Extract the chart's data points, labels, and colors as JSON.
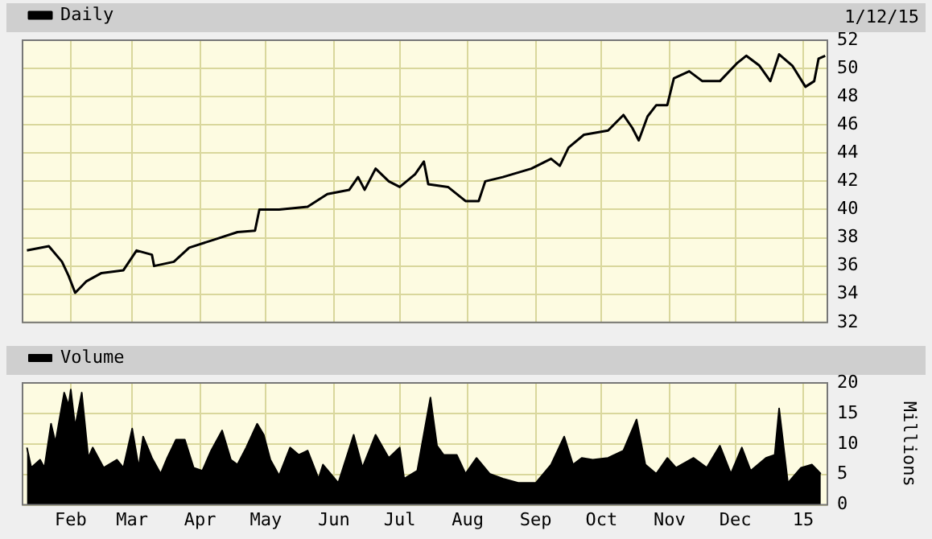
{
  "chart_data": [
    {
      "type": "line",
      "annotations": [
        "1/12/15"
      ],
      "legend": "top left",
      "grid": true,
      "tick_labels": "y",
      "xlim": [
        "2014-01-10",
        "2015-01-12"
      ],
      "xticks": [
        {
          "value": "2014-02-01",
          "label": null
        },
        {
          "value": "2014-03-01",
          "label": null
        },
        {
          "value": "2014-04-01",
          "label": null
        },
        {
          "value": "2014-05-01",
          "label": null
        },
        {
          "value": "2014-06-01",
          "label": null
        },
        {
          "value": "2014-07-01",
          "label": null
        },
        {
          "value": "2014-08-01",
          "label": null
        },
        {
          "value": "2014-09-01",
          "label": null
        },
        {
          "value": "2014-10-01",
          "label": null
        },
        {
          "value": "2014-11-01",
          "label": null
        },
        {
          "value": "2014-12-01",
          "label": null
        },
        {
          "value": "2015-01-01",
          "label": null
        }
      ],
      "ylim": [
        32,
        52
      ],
      "yticks": [
        32,
        34,
        36,
        38,
        40,
        42,
        44,
        46,
        48,
        50,
        52
      ],
      "series": [
        {
          "name": "Daily",
          "color": "#000000",
          "x": [
            "2014-01-12",
            "2014-01-22",
            "2014-01-28",
            "2014-01-31",
            "2014-02-03",
            "2014-02-08",
            "2014-02-15",
            "2014-02-25",
            "2014-03-03",
            "2014-03-10",
            "2014-03-11",
            "2014-03-20",
            "2014-03-27",
            "2014-04-08",
            "2014-04-18",
            "2014-04-26",
            "2014-04-28",
            "2014-05-07",
            "2014-05-20",
            "2014-05-29",
            "2014-06-08",
            "2014-06-12",
            "2014-06-15",
            "2014-06-20",
            "2014-06-26",
            "2014-07-01",
            "2014-07-08",
            "2014-07-12",
            "2014-07-14",
            "2014-07-23",
            "2014-07-31",
            "2014-08-06",
            "2014-08-09",
            "2014-08-17",
            "2014-08-30",
            "2014-09-08",
            "2014-09-12",
            "2014-09-16",
            "2014-09-23",
            "2014-10-04",
            "2014-10-11",
            "2014-10-15",
            "2014-10-18",
            "2014-10-22",
            "2014-10-26",
            "2014-10-31",
            "2014-11-03",
            "2014-11-10",
            "2014-11-16",
            "2014-11-24",
            "2014-12-02",
            "2014-12-06",
            "2014-12-12",
            "2014-12-17",
            "2014-12-21",
            "2014-12-27",
            "2015-01-02",
            "2015-01-06",
            "2015-01-08",
            "2015-01-11"
          ],
          "values": [
            37.1,
            37.4,
            36.3,
            35.3,
            34.1,
            34.9,
            35.5,
            35.7,
            37.1,
            36.8,
            36.0,
            36.3,
            37.3,
            37.9,
            38.4,
            38.5,
            40.0,
            40.0,
            40.2,
            41.1,
            41.4,
            42.3,
            41.4,
            42.9,
            42.0,
            41.6,
            42.5,
            43.4,
            41.8,
            41.6,
            40.6,
            40.6,
            42.0,
            42.3,
            42.9,
            43.6,
            43.1,
            44.4,
            45.3,
            45.6,
            46.7,
            45.8,
            44.9,
            46.6,
            47.4,
            47.4,
            49.3,
            49.8,
            49.1,
            49.1,
            50.4,
            50.9,
            50.2,
            49.1,
            51.0,
            50.2,
            48.7,
            49.1,
            50.7,
            50.9
          ]
        }
      ]
    },
    {
      "type": "area",
      "ylabel": "Millions",
      "legend": "top left",
      "grid": true,
      "xlim": [
        "2014-01-10",
        "2015-01-12"
      ],
      "xticks": [
        {
          "value": "2014-02-01",
          "label": "Feb"
        },
        {
          "value": "2014-03-01",
          "label": "Mar"
        },
        {
          "value": "2014-04-01",
          "label": "Apr"
        },
        {
          "value": "2014-05-01",
          "label": "May"
        },
        {
          "value": "2014-06-01",
          "label": "Jun"
        },
        {
          "value": "2014-07-01",
          "label": "Jul"
        },
        {
          "value": "2014-08-01",
          "label": "Aug"
        },
        {
          "value": "2014-09-01",
          "label": "Sep"
        },
        {
          "value": "2014-10-01",
          "label": "Oct"
        },
        {
          "value": "2014-11-01",
          "label": "Nov"
        },
        {
          "value": "2014-12-01",
          "label": "Dec"
        },
        {
          "value": "2015-01-01",
          "label": "15"
        }
      ],
      "ylim": [
        0,
        20
      ],
      "yticks": [
        0,
        5,
        10,
        15,
        20
      ],
      "series": [
        {
          "name": "Volume",
          "color": "#000000",
          "x": [
            "2014-01-12",
            "2014-01-14",
            "2014-01-18",
            "2014-01-20",
            "2014-01-23",
            "2014-01-25",
            "2014-01-29",
            "2014-01-31",
            "2014-02-01",
            "2014-02-03",
            "2014-02-06",
            "2014-02-09",
            "2014-02-11",
            "2014-02-16",
            "2014-02-22",
            "2014-02-25",
            "2014-03-01",
            "2014-03-04",
            "2014-03-06",
            "2014-03-10",
            "2014-03-14",
            "2014-03-17",
            "2014-03-21",
            "2014-03-25",
            "2014-03-29",
            "2014-04-02",
            "2014-04-06",
            "2014-04-11",
            "2014-04-15",
            "2014-04-18",
            "2014-04-22",
            "2014-04-27",
            "2014-04-30",
            "2014-05-03",
            "2014-05-07",
            "2014-05-12",
            "2014-05-16",
            "2014-05-20",
            "2014-05-25",
            "2014-05-27",
            "2014-06-03",
            "2014-06-10",
            "2014-06-14",
            "2014-06-20",
            "2014-06-26",
            "2014-07-01",
            "2014-07-03",
            "2014-07-09",
            "2014-07-15",
            "2014-07-18",
            "2014-07-21",
            "2014-07-27",
            "2014-07-31",
            "2014-08-05",
            "2014-08-11",
            "2014-08-17",
            "2014-08-24",
            "2014-09-01",
            "2014-09-08",
            "2014-09-14",
            "2014-09-18",
            "2014-09-22",
            "2014-09-27",
            "2014-10-04",
            "2014-10-11",
            "2014-10-17",
            "2014-10-21",
            "2014-10-26",
            "2014-10-31",
            "2014-11-04",
            "2014-11-12",
            "2014-11-18",
            "2014-11-24",
            "2014-11-29",
            "2014-12-04",
            "2014-12-08",
            "2014-12-15",
            "2014-12-19",
            "2014-12-21",
            "2014-12-25",
            "2014-12-31",
            "2015-01-05",
            "2015-01-09"
          ],
          "values": [
            9.4,
            6.1,
            7.4,
            6.1,
            13.3,
            10.2,
            18.4,
            16.3,
            18.9,
            12.8,
            18.4,
            7.7,
            9.4,
            6.1,
            7.4,
            6.1,
            12.5,
            6.1,
            11.2,
            7.7,
            5.1,
            7.7,
            10.7,
            10.7,
            6.1,
            5.6,
            8.9,
            12.2,
            7.4,
            6.6,
            9.4,
            13.3,
            11.5,
            7.4,
            4.8,
            9.4,
            8.2,
            8.9,
            4.3,
            6.6,
            3.6,
            11.5,
            6.1,
            11.5,
            7.7,
            9.4,
            4.3,
            5.6,
            17.6,
            9.7,
            8.2,
            8.2,
            5.1,
            7.7,
            5.1,
            4.3,
            3.6,
            3.6,
            6.6,
            11.2,
            6.6,
            7.7,
            7.4,
            7.7,
            8.9,
            14.0,
            6.6,
            5.1,
            7.7,
            6.1,
            7.7,
            6.1,
            9.7,
            5.1,
            9.4,
            5.6,
            7.7,
            8.2,
            15.8,
            3.6,
            6.1,
            6.6,
            5.1
          ]
        }
      ]
    }
  ]
}
